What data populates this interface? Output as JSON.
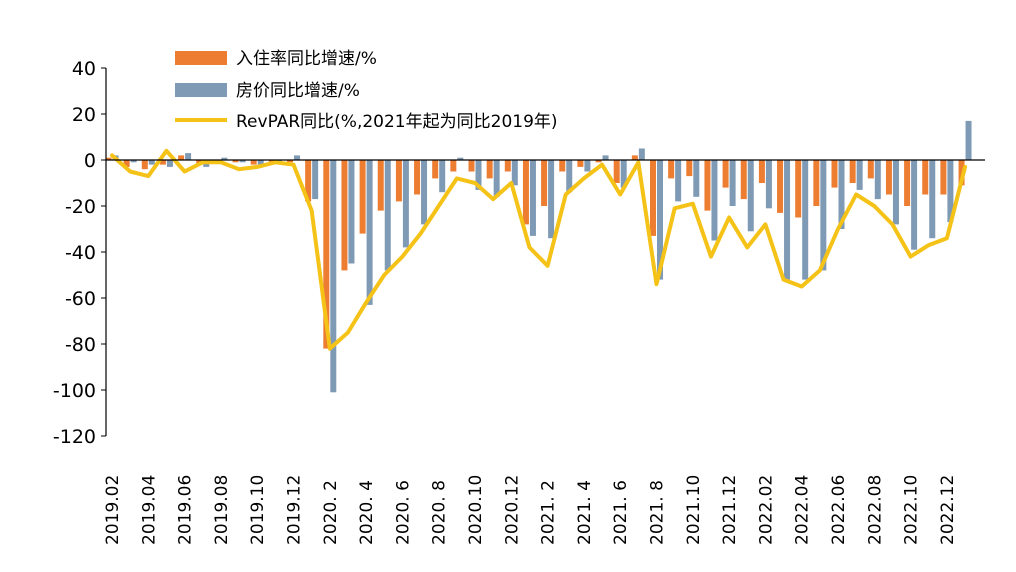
{
  "chart_data": {
    "type": "bar+line",
    "title": "",
    "xlabel": "",
    "ylabel": "",
    "ylim": [
      -120,
      40
    ],
    "yticks": [
      40,
      20,
      0,
      -20,
      -40,
      -60,
      -80,
      -100,
      -120
    ],
    "tick_labels": [
      "2019.02",
      "2019.04",
      "2019.06",
      "2019.08",
      "2019.10",
      "2019.12",
      "2020. 2",
      "2020. 4",
      "2020. 6",
      "2020. 8",
      "2020.10",
      "2020.12",
      "2021. 2",
      "2021. 4",
      "2021. 6",
      "2021. 8",
      "2021.10",
      "2021.12",
      "2022.02",
      "2022.04",
      "2022.06",
      "2022.08",
      "2022.10",
      "2022.12"
    ],
    "categories": [
      "2019.02",
      "2019.03",
      "2019.04",
      "2019.05",
      "2019.06",
      "2019.07",
      "2019.08",
      "2019.09",
      "2019.10",
      "2019.11",
      "2019.12",
      "2020.01",
      "2020.02",
      "2020.03",
      "2020.04",
      "2020.05",
      "2020.06",
      "2020.07",
      "2020.08",
      "2020.09",
      "2020.10",
      "2020.11",
      "2020.12",
      "2021.01",
      "2021.02",
      "2021.03",
      "2021.04",
      "2021.05",
      "2021.06",
      "2021.07",
      "2021.08",
      "2021.09",
      "2021.10",
      "2021.11",
      "2021.12",
      "2022.01",
      "2022.02",
      "2022.03",
      "2022.04",
      "2022.05",
      "2022.06",
      "2022.07",
      "2022.08",
      "2022.09",
      "2022.10",
      "2022.11",
      "2022.12",
      "2023.01"
    ],
    "series": [
      {
        "name": "入住率同比增速/%",
        "kind": "bar",
        "color": "#ED7D31",
        "values": [
          1,
          -3,
          -4,
          -2,
          2,
          -2,
          0,
          -1,
          -2,
          -1,
          -1,
          -18,
          -82,
          -48,
          -32,
          -22,
          -18,
          -15,
          -8,
          -5,
          -5,
          -8,
          -5,
          -28,
          -20,
          -5,
          -3,
          -1,
          -10,
          2,
          -33,
          -8,
          -7,
          -22,
          -12,
          -17,
          -10,
          -23,
          -25,
          -20,
          -12,
          -10,
          -8,
          -15,
          -20,
          -15,
          -15,
          -11
        ]
      },
      {
        "name": "房价同比增速/%",
        "kind": "bar",
        "color": "#7F9AB5",
        "values": [
          2,
          -1,
          -2,
          -3,
          3,
          -3,
          1,
          -1,
          -2,
          -1,
          2,
          -17,
          -101,
          -45,
          -63,
          -48,
          -38,
          -28,
          -14,
          1,
          -13,
          -16,
          -11,
          -33,
          -34,
          -14,
          -5,
          2,
          -12,
          5,
          -52,
          -18,
          -16,
          -35,
          -20,
          -31,
          -21,
          -52,
          -52,
          -48,
          -30,
          -13,
          -17,
          -28,
          -39,
          -34,
          -27,
          17
        ]
      },
      {
        "name": "RevPAR同比(%,2021年起为同比2019年)",
        "kind": "line",
        "color": "#F5C217",
        "values": [
          2,
          -5,
          -7,
          4,
          -5,
          -1,
          -1,
          -4,
          -3,
          -1,
          -2,
          -22,
          -82,
          -75,
          -62,
          -50,
          -42,
          -32,
          -20,
          -8,
          -10,
          -17,
          -10,
          -38,
          -46,
          -15,
          -8,
          -2,
          -15,
          -1,
          -54,
          -21,
          -19,
          -42,
          -25,
          -38,
          -28,
          -52,
          -55,
          -48,
          -30,
          -15,
          -20,
          -28,
          -42,
          -37,
          -34,
          -3
        ]
      }
    ],
    "legend": {
      "position": "top-center",
      "entries": [
        "入住率同比增速/%",
        "房价同比增速/%",
        "RevPAR同比(%,2021年起为同比2019年)"
      ]
    },
    "grid": false
  }
}
